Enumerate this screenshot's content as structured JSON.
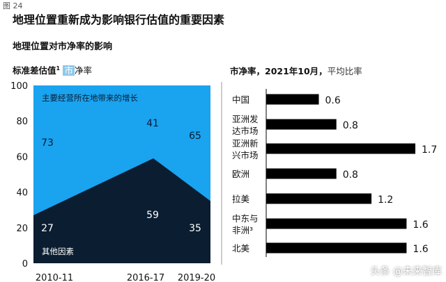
{
  "figure_label": "图 24",
  "title": "地理位置重新成为影响银行估值的重要因素",
  "subtitle": "地理位置对市净率的影响",
  "left_header": {
    "bold": "标准差估值",
    "sup": "1",
    "highlight": "市",
    "rest": "净率"
  },
  "right_header": {
    "bold": "市净率，2021年10月，",
    "rest": "平均比率"
  },
  "watermark": "头条 @未来智库",
  "colors": {
    "top_area": "#1aa3ef",
    "bottom_area": "#0b1d31",
    "bar": "#000000"
  },
  "chart_data": [
    {
      "type": "area",
      "title": "",
      "x": [
        "2010-11",
        "2016-17",
        "2019-20"
      ],
      "ylim": [
        0,
        100
      ],
      "yticks": [
        0,
        20,
        40,
        60,
        80,
        100
      ],
      "stacked": true,
      "series": [
        {
          "name": "其他因素",
          "values": [
            27,
            59,
            35
          ],
          "color": "#0b1d31"
        },
        {
          "name": "主要经营所在地带来的增长",
          "values": [
            73,
            41,
            65
          ],
          "color": "#1aa3ef"
        }
      ]
    },
    {
      "type": "bar",
      "orientation": "horizontal",
      "categories": [
        "中国",
        "亚洲发达市场",
        "亚洲新兴市场",
        "欧洲",
        "拉美",
        "中东与非洲³",
        "北美"
      ],
      "category_lines": [
        [
          "中国"
        ],
        [
          "亚洲发",
          "达市场"
        ],
        [
          "亚洲新",
          "兴市场"
        ],
        [
          "欧洲"
        ],
        [
          "拉美"
        ],
        [
          "中东与",
          "非洲³"
        ],
        [
          "北美"
        ]
      ],
      "values": [
        0.6,
        0.8,
        1.7,
        0.8,
        1.2,
        1.6,
        1.6
      ],
      "value_labels": [
        "0.6",
        "0.8",
        "1.7",
        "0.8",
        "1.2",
        "1.6",
        "1.6"
      ]
    }
  ]
}
